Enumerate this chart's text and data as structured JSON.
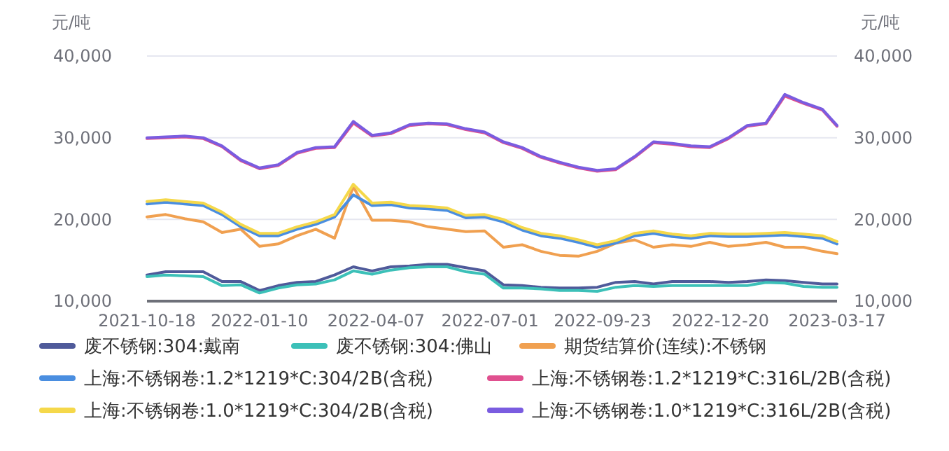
{
  "chart_data": {
    "type": "line",
    "ylabel": "元/吨",
    "y2label": "元/吨",
    "x": [
      "2021-10-18",
      "2021-11-01",
      "2021-11-15",
      "2021-11-29",
      "2021-12-13",
      "2021-12-27",
      "2022-01-10",
      "2022-01-24",
      "2022-02-07",
      "2022-02-21",
      "2022-03-07",
      "2022-03-21",
      "2022-04-04",
      "2022-04-18",
      "2022-05-02",
      "2022-05-16",
      "2022-05-30",
      "2022-06-13",
      "2022-06-27",
      "2022-07-11",
      "2022-07-25",
      "2022-08-08",
      "2022-08-22",
      "2022-09-05",
      "2022-09-19",
      "2022-10-03",
      "2022-10-17",
      "2022-10-31",
      "2022-11-14",
      "2022-11-28",
      "2022-12-12",
      "2022-12-26",
      "2023-01-09",
      "2023-01-23",
      "2023-02-06",
      "2023-02-20",
      "2023-03-06",
      "2023-03-17"
    ],
    "xlim": [
      "2021-10-18",
      "2023-03-17"
    ],
    "xticks": [
      "2021-10-18",
      "2022-01-10",
      "2022-04-07",
      "2022-07-01",
      "2022-09-23",
      "2022-12-20",
      "2023-03-17"
    ],
    "ylim": [
      10000,
      40000
    ],
    "yticks": [
      {
        "value": 10000,
        "label": "10,000"
      },
      {
        "value": 20000,
        "label": "20,000"
      },
      {
        "value": 30000,
        "label": "30,000"
      },
      {
        "value": 40000,
        "label": "40,000"
      }
    ],
    "y2lim": [
      10000,
      40000
    ],
    "y2ticks": [
      {
        "value": 10000,
        "label": "10,000"
      },
      {
        "value": 20000,
        "label": "20,000"
      },
      {
        "value": 30000,
        "label": "30,000"
      },
      {
        "value": 40000,
        "label": "40,000"
      }
    ],
    "grid": "y",
    "legend": "bottom",
    "marker": "none",
    "line_style": "solid",
    "series": [
      {
        "name": "废不锈钢:304:戴南",
        "color": "#4f5a9a",
        "values": [
          13200,
          13600,
          13600,
          13600,
          12400,
          12400,
          11300,
          11900,
          12300,
          12400,
          13200,
          14200,
          13700,
          14200,
          14300,
          14500,
          14500,
          14100,
          13700,
          12000,
          11900,
          11700,
          11600,
          11600,
          11700,
          12300,
          12400,
          12100,
          12400,
          12400,
          12400,
          12300,
          12400,
          12600,
          12500,
          12300,
          12100,
          12100
        ]
      },
      {
        "name": "废不锈钢:304:佛山",
        "color": "#3cc0b8",
        "values": [
          13000,
          13200,
          13100,
          13000,
          11900,
          12000,
          11000,
          11600,
          12000,
          12100,
          12600,
          13700,
          13300,
          13800,
          14100,
          14200,
          14200,
          13600,
          13300,
          11600,
          11600,
          11500,
          11300,
          11300,
          11200,
          11700,
          11900,
          11800,
          11900,
          11900,
          11900,
          11900,
          11900,
          12300,
          12200,
          11800,
          11700,
          11700
        ]
      },
      {
        "name": "期货结算价(连续):不锈钢",
        "color": "#f0a050",
        "values": [
          20300,
          20600,
          20100,
          19700,
          18400,
          18800,
          16700,
          17000,
          18000,
          18800,
          17700,
          24000,
          19900,
          19900,
          19700,
          19100,
          18800,
          18500,
          18600,
          16600,
          16900,
          16100,
          15600,
          15500,
          16100,
          17100,
          17500,
          16600,
          16900,
          16700,
          17200,
          16700,
          16900,
          17200,
          16600,
          16600,
          16100,
          15800
        ]
      },
      {
        "name": "上海:不锈钢卷:1.2*1219*C:304/2B(含税)",
        "color": "#4a8ee0",
        "values": [
          21900,
          22100,
          21900,
          21700,
          20600,
          19100,
          18000,
          18000,
          18800,
          19400,
          20300,
          23000,
          21700,
          21800,
          21400,
          21300,
          21100,
          20200,
          20300,
          19700,
          18700,
          18000,
          17700,
          17200,
          16600,
          17100,
          18000,
          18300,
          17900,
          17700,
          18000,
          17900,
          17900,
          18000,
          18100,
          17900,
          17700,
          17000
        ]
      },
      {
        "name": "上海:不锈钢卷:1.2*1219*C:316L/2B(含税)",
        "color": "#e0508f",
        "values": [
          29900,
          30000,
          30100,
          29900,
          28900,
          27200,
          26200,
          26600,
          28100,
          28700,
          28800,
          31800,
          30200,
          30500,
          31500,
          31700,
          31600,
          31000,
          30600,
          29400,
          28700,
          27600,
          26900,
          26300,
          25900,
          26100,
          27600,
          29400,
          29200,
          28900,
          28800,
          29900,
          31400,
          31700,
          35100,
          34200,
          33400,
          31400
        ]
      },
      {
        "name": "上海:不锈钢卷:1.0*1219*C:304/2B(含税)",
        "color": "#f5d84a",
        "values": [
          22200,
          22400,
          22200,
          22000,
          20900,
          19400,
          18300,
          18300,
          19100,
          19700,
          20600,
          24300,
          22000,
          22100,
          21700,
          21600,
          21400,
          20500,
          20600,
          20000,
          19000,
          18300,
          18000,
          17500,
          16900,
          17400,
          18300,
          18600,
          18200,
          18000,
          18300,
          18200,
          18200,
          18300,
          18400,
          18200,
          18000,
          17300
        ]
      },
      {
        "name": "上海:不锈钢卷:1.0*1219*C:316L/2B(含税)",
        "color": "#7a5ce0",
        "values": [
          30000,
          30100,
          30200,
          30000,
          29000,
          27300,
          26300,
          26700,
          28200,
          28800,
          28900,
          32000,
          30300,
          30600,
          31600,
          31800,
          31700,
          31100,
          30700,
          29500,
          28800,
          27700,
          27000,
          26400,
          26000,
          26200,
          27700,
          29500,
          29300,
          29000,
          28900,
          30000,
          31500,
          31800,
          35300,
          34300,
          33500,
          31500
        ]
      }
    ]
  }
}
